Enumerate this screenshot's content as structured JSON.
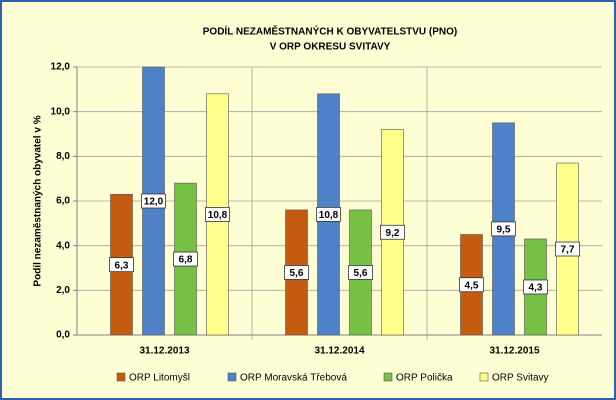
{
  "chart_data": {
    "type": "bar",
    "title": [
      "PODÍL NEZAMĚSTNANÝCH K OBYVATELSTVU (PNO)",
      "V ORP OKRESU SVITAVY"
    ],
    "y_label": "Podíl nezaměstnaných  obyvatel v %",
    "categories": [
      "31.12.2013",
      "31.12.2014",
      "31.12.2015"
    ],
    "series": [
      {
        "name": "ORP Litomyšl",
        "color": "#c55a11",
        "values": [
          6.3,
          5.6,
          4.5
        ],
        "value_labels": [
          "6,3",
          "5,6",
          "4,5"
        ]
      },
      {
        "name": "ORP Moravská Třebová",
        "color": "#4f81c9",
        "values": [
          12.0,
          10.8,
          9.5
        ],
        "value_labels": [
          "12,0",
          "10,8",
          "9,5"
        ]
      },
      {
        "name": "ORP Polička",
        "color": "#76c043",
        "values": [
          6.8,
          5.6,
          4.3
        ],
        "value_labels": [
          "6,8",
          "5,6",
          "4,3"
        ]
      },
      {
        "name": "ORP Svitavy",
        "color": "#ffff8c",
        "values": [
          10.8,
          9.2,
          7.7
        ],
        "value_labels": [
          "10,8",
          "9,2",
          "7,7"
        ]
      }
    ],
    "ylim": [
      0,
      12
    ],
    "yticks": [
      {
        "value": 0,
        "label": "0,0"
      },
      {
        "value": 2,
        "label": "2,0"
      },
      {
        "value": 4,
        "label": "4,0"
      },
      {
        "value": 6,
        "label": "6,0"
      },
      {
        "value": 8,
        "label": "8,0"
      },
      {
        "value": 10,
        "label": "10,0"
      },
      {
        "value": 12,
        "label": "12,0"
      }
    ],
    "grid": true,
    "legend": "bottom"
  }
}
